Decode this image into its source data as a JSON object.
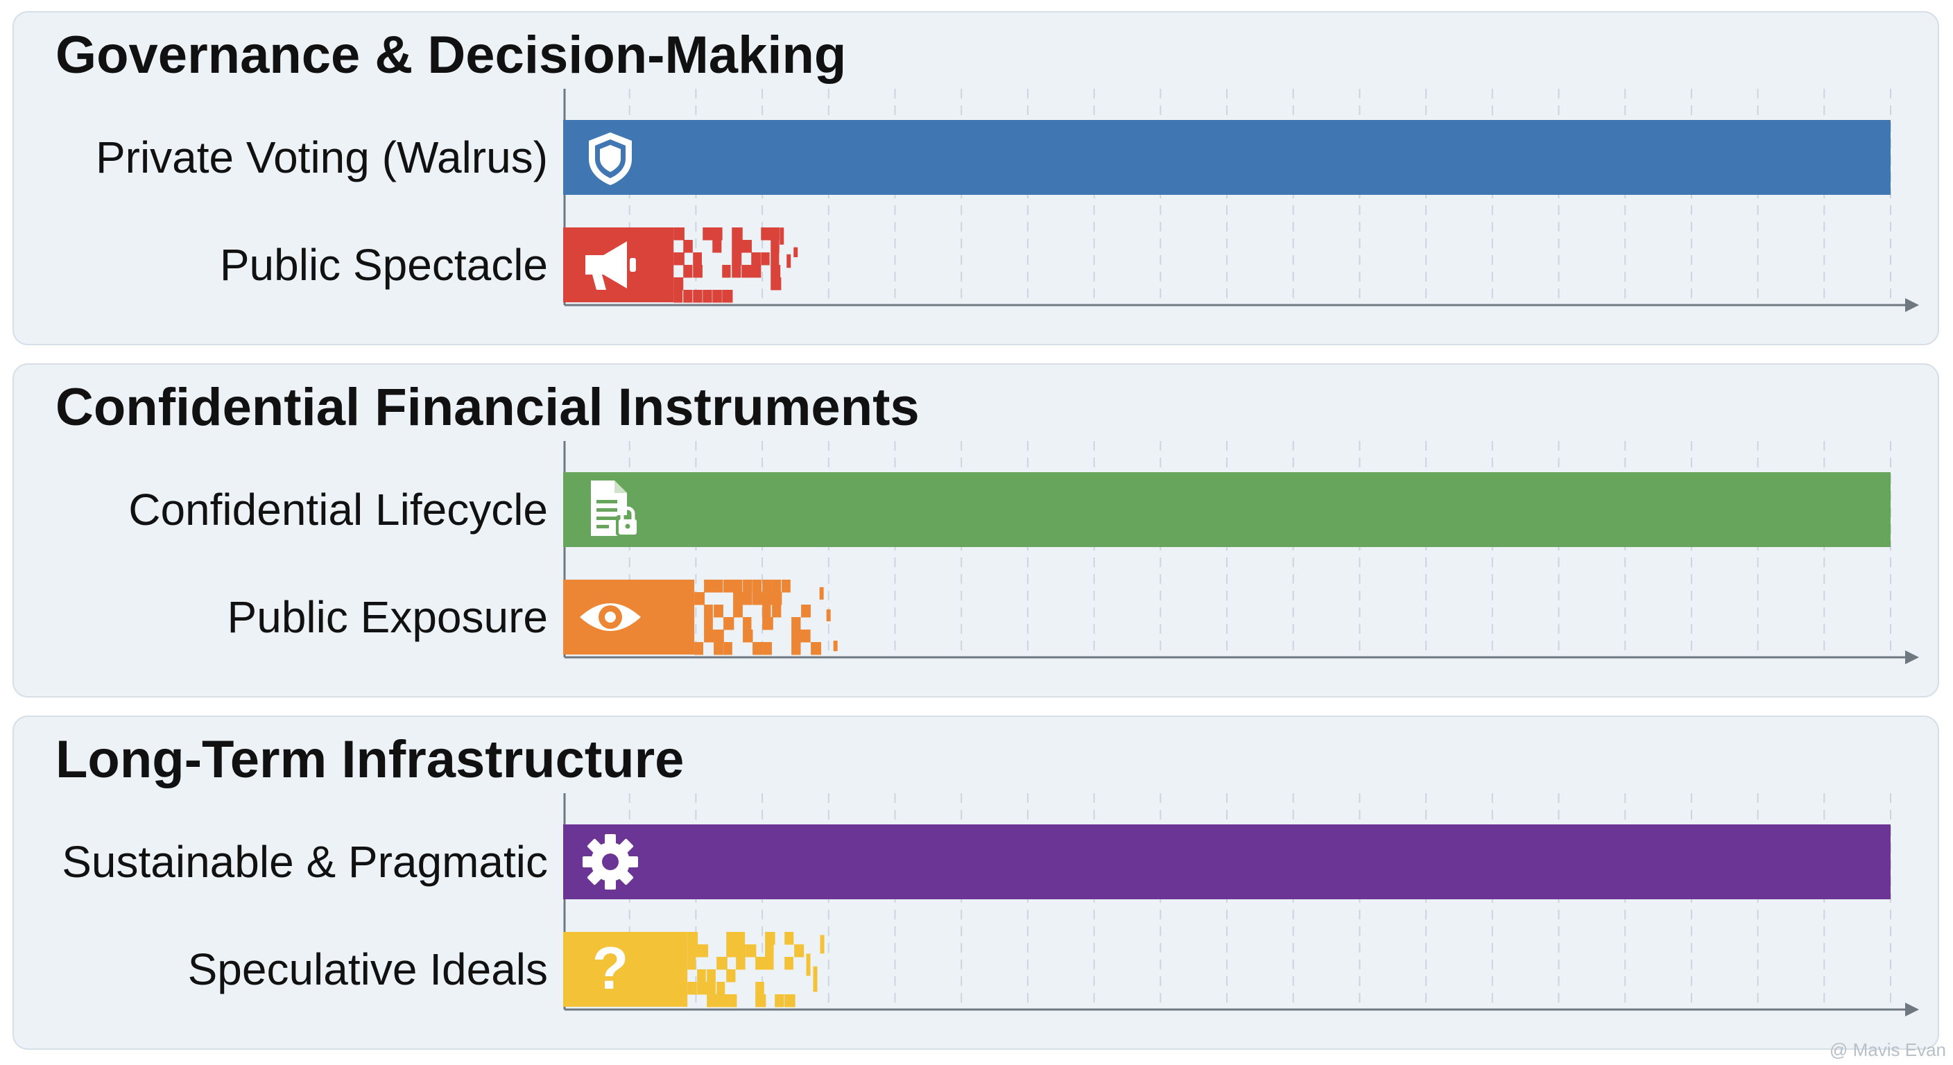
{
  "chart_data": [
    {
      "type": "bar",
      "orientation": "horizontal",
      "title": "Governance & Decision-Making",
      "categories": [
        "Private Voting (Walrus)",
        "Public Spectacle"
      ],
      "values": [
        100,
        16
      ],
      "colors": [
        "#4077b2",
        "#d9433a"
      ],
      "icons": [
        "shield-icon",
        "megaphone-icon"
      ],
      "styles": [
        "solid",
        "fragmented"
      ],
      "xlim": [
        0,
        100
      ],
      "grid": true
    },
    {
      "type": "bar",
      "orientation": "horizontal",
      "title": "Confidential Financial Instruments",
      "categories": [
        "Confidential Lifecycle",
        "Public Exposure"
      ],
      "values": [
        100,
        19
      ],
      "colors": [
        "#67a55c",
        "#ec8634"
      ],
      "icons": [
        "locked-document-icon",
        "eye-icon"
      ],
      "styles": [
        "solid",
        "fragmented"
      ],
      "xlim": [
        0,
        100
      ],
      "grid": true
    },
    {
      "type": "bar",
      "orientation": "horizontal",
      "title": "Long-Term Infrastructure",
      "categories": [
        "Sustainable & Pragmatic",
        "Speculative Ideals"
      ],
      "values": [
        100,
        18
      ],
      "colors": [
        "#6a3595",
        "#f3c237"
      ],
      "icons": [
        "gear-icon",
        "question-mark-icon"
      ],
      "styles": [
        "solid",
        "fragmented"
      ],
      "xlim": [
        0,
        100
      ],
      "grid": true
    }
  ],
  "watermark": "@ Mavis Evan"
}
